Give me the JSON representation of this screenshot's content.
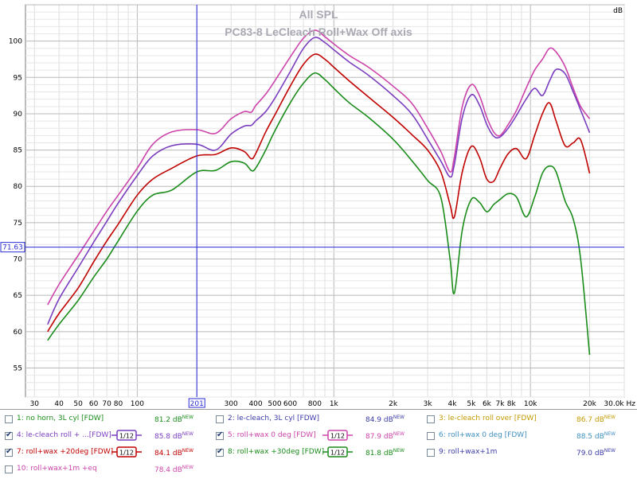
{
  "chart_data": {
    "type": "line",
    "title": "All SPL",
    "subtitle": "PC83-8 LeCleach Roll+Wax Off axis",
    "ylabel": "dB",
    "xunit": "Hz",
    "xscale": "log",
    "xlim": [
      27,
      30000
    ],
    "ylim": [
      51,
      105
    ],
    "grid": true,
    "x_tick_labels": [
      "30",
      "40",
      "50",
      "60",
      "70",
      "80",
      "100",
      "300",
      "400",
      "500",
      "600",
      "800",
      "1k",
      "2k",
      "3k",
      "4k",
      "5k",
      "6k",
      "7k",
      "8k",
      "10k",
      "20k",
      "30.0k Hz"
    ],
    "y_tick_labels": [
      "55",
      "60",
      "65",
      "70",
      "75",
      "80",
      "85",
      "90",
      "95",
      "100"
    ],
    "cursor": {
      "x_label": "201",
      "y_label": "71.63"
    },
    "x": [
      35,
      40,
      50,
      60,
      70,
      80,
      100,
      120,
      150,
      201,
      250,
      300,
      350,
      380,
      400,
      450,
      500,
      600,
      700,
      800,
      900,
      1000,
      1200,
      1500,
      2000,
      2500,
      3000,
      3500,
      3900,
      4100,
      4500,
      5000,
      5500,
      6000,
      6500,
      7000,
      7700,
      8500,
      9500,
      10500,
      11500,
      12500,
      13500,
      15000,
      16500,
      18000,
      20000
    ],
    "series": [
      {
        "color": "#cc44aa",
        "values": [
          63.7,
          66.5,
          70.5,
          73.8,
          76.6,
          78.8,
          82.5,
          85.8,
          87.5,
          87.8,
          87.3,
          89.3,
          90.3,
          90.2,
          91.1,
          92.7,
          94.5,
          97.8,
          100.4,
          101.5,
          100.6,
          99.6,
          98.0,
          96.4,
          93.8,
          91.4,
          88.0,
          84.8,
          82.0,
          84.0,
          91.0,
          94.0,
          92.5,
          89.5,
          87.5,
          87.0,
          88.5,
          90.5,
          93.5,
          96.0,
          97.5,
          99.0,
          98.5,
          96.5,
          93.5,
          91.0,
          89.3
        ]
      },
      {
        "color": "#7a3dbf",
        "values": [
          61.0,
          64.5,
          68.8,
          72.3,
          75.2,
          77.7,
          81.5,
          84.2,
          85.6,
          85.8,
          85.0,
          87.2,
          88.3,
          88.4,
          89.0,
          90.3,
          92.1,
          95.8,
          99.0,
          100.5,
          99.8,
          98.8,
          97.1,
          95.3,
          92.5,
          89.9,
          86.5,
          83.5,
          81.3,
          83.0,
          89.5,
          92.6,
          91.2,
          88.5,
          86.9,
          86.8,
          88.0,
          89.8,
          92.0,
          93.5,
          92.5,
          94.5,
          96.1,
          95.5,
          93.0,
          90.5,
          87.4
        ]
      },
      {
        "color": "#c00000",
        "values": [
          60.0,
          62.5,
          66.0,
          69.6,
          72.5,
          74.8,
          78.8,
          81.0,
          82.5,
          84.2,
          84.4,
          85.3,
          84.8,
          83.8,
          84.5,
          87.5,
          89.8,
          93.8,
          96.8,
          98.2,
          97.5,
          96.4,
          94.5,
          92.3,
          89.5,
          87.1,
          85.0,
          82.0,
          77.5,
          75.8,
          82.0,
          85.5,
          84.0,
          81.0,
          80.7,
          82.5,
          84.5,
          85.2,
          83.8,
          87.0,
          90.0,
          91.5,
          89.0,
          85.6,
          86.0,
          86.4,
          81.8
        ]
      },
      {
        "color": "#1a8c1a",
        "values": [
          58.8,
          61.0,
          64.3,
          67.5,
          70.0,
          72.5,
          76.6,
          78.8,
          79.5,
          82.0,
          82.2,
          83.4,
          83.2,
          82.2,
          82.5,
          85.0,
          87.6,
          91.5,
          94.2,
          95.6,
          94.7,
          93.5,
          91.5,
          89.5,
          86.5,
          83.5,
          80.8,
          78.5,
          70.0,
          65.3,
          74.0,
          78.2,
          77.8,
          76.5,
          77.5,
          78.2,
          79.0,
          78.5,
          75.8,
          78.5,
          81.8,
          82.8,
          82.0,
          78.0,
          75.5,
          70.0,
          56.8
        ]
      }
    ]
  },
  "legend": [
    {
      "num": "1",
      "label": "no horn, 3L cyl [FDW]",
      "value": "81.2 dB",
      "sup": "NEW",
      "checked": false,
      "color": "#1a8c1a",
      "smoothing": ""
    },
    {
      "num": "2",
      "label": "le-cleach, 3L cyl [FDW]",
      "value": "84.9 dB",
      "sup": "NEW",
      "checked": false,
      "color": "#3c3ca8",
      "smoothing": ""
    },
    {
      "num": "3",
      "label": "le-cleach roll over [FDW]",
      "value": "86.7 dB",
      "sup": "NEW",
      "checked": false,
      "color": "#c49a00",
      "smoothing": ""
    },
    {
      "num": "4",
      "label": "le-cleach roll + ...[FDW]",
      "value": "85.8 dB",
      "sup": "NEW",
      "checked": true,
      "color": "#7a3dbf",
      "smoothing": "1/12"
    },
    {
      "num": "5",
      "label": "roll+wax 0 deg [FDW]",
      "value": "87.9 dB",
      "sup": "NEW",
      "checked": true,
      "color": "#cc44aa",
      "smoothing": "1/12"
    },
    {
      "num": "6",
      "label": "roll+wax 0 deg [FDW]",
      "value": "88.5 dB",
      "sup": "NEW",
      "checked": false,
      "color": "#3f8fbf",
      "smoothing": ""
    },
    {
      "num": "7",
      "label": "roll+wax +20deg [FDW]",
      "value": "84.1 dB",
      "sup": "NEW",
      "checked": true,
      "color": "#c00000",
      "smoothing": "1/12"
    },
    {
      "num": "8",
      "label": "roll+wax +30deg [FDW]",
      "value": "81.8 dB",
      "sup": "NEW",
      "checked": true,
      "color": "#1a8c1a",
      "smoothing": "1/12"
    },
    {
      "num": "9",
      "label": "roll+wax+1m",
      "value": "79.0 dB",
      "sup": "NEW",
      "checked": false,
      "color": "#3c3ca8",
      "smoothing": ""
    },
    {
      "num": "10",
      "label": "roll+wax+1m +eq",
      "value": "78.4 dB",
      "sup": "NEW",
      "checked": false,
      "color": "#cc44aa",
      "smoothing": ""
    }
  ]
}
